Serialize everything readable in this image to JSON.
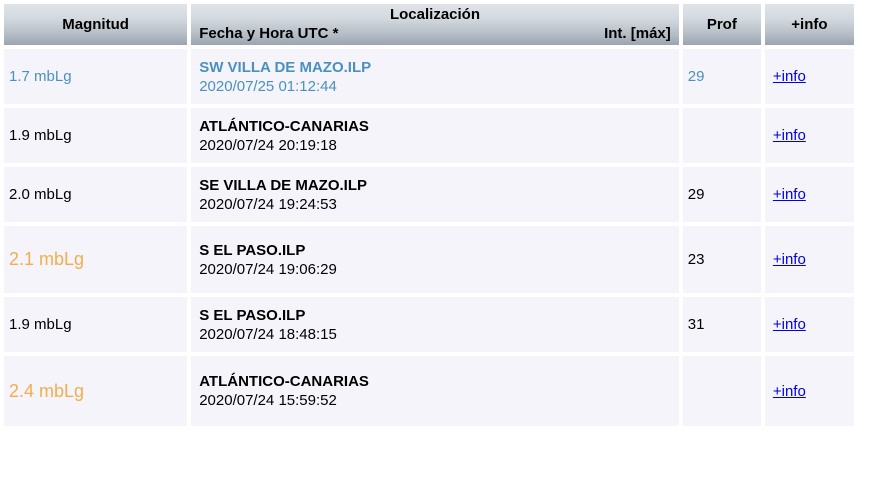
{
  "table": {
    "headers": {
      "magnitud": "Magnitud",
      "localizacion": "Localización",
      "fecha_hora": "Fecha y Hora UTC *",
      "int_max": "Int. [máx]",
      "prof": "Prof",
      "info": "+info"
    },
    "rows": [
      {
        "magnitude": "1.7 mbLg",
        "location": "SW VILLA DE MAZO.ILP",
        "datetime": "2020/07/25 01:12:44",
        "prof": "29",
        "info_label": "+info"
      },
      {
        "magnitude": "1.9 mbLg",
        "location": "ATLÁNTICO-CANARIAS",
        "datetime": "2020/07/24 20:19:18",
        "prof": "",
        "info_label": "+info"
      },
      {
        "magnitude": "2.0 mbLg",
        "location": "SE VILLA DE MAZO.ILP",
        "datetime": "2020/07/24 19:24:53",
        "prof": "29",
        "info_label": "+info"
      },
      {
        "magnitude": "2.1 mbLg",
        "location": "S EL PASO.ILP",
        "datetime": "2020/07/24 19:06:29",
        "prof": "23",
        "info_label": "+info"
      },
      {
        "magnitude": "1.9 mbLg",
        "location": "S EL PASO.ILP",
        "datetime": "2020/07/24 18:48:15",
        "prof": "31",
        "info_label": "+info"
      },
      {
        "magnitude": "2.4 mbLg",
        "location": "ATLÁNTICO-CANARIAS",
        "datetime": "2020/07/24 15:59:52",
        "prof": "",
        "info_label": "+info"
      }
    ],
    "colors": {
      "highlight_blue": "#4a91be",
      "highlight_orange": "#f2ae4e",
      "link_blue": "#0000e6",
      "row_background": "#f4f4fa",
      "header_gradient_top": "#e0e4e9",
      "header_gradient_bottom": "#9aa4af"
    }
  }
}
